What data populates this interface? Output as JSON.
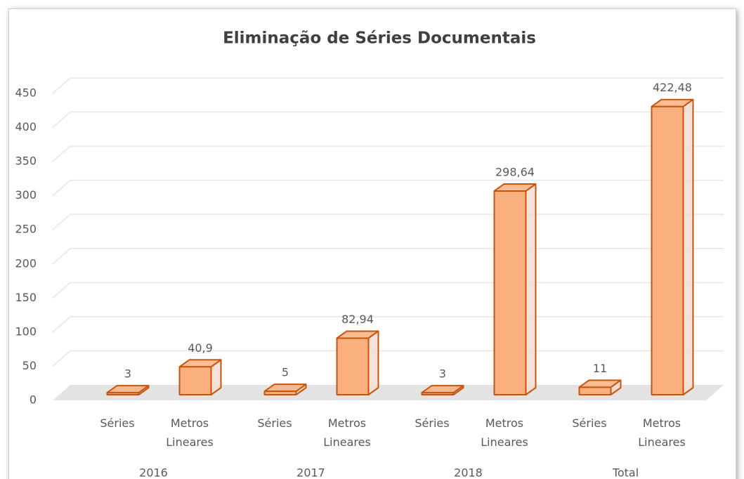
{
  "chart_data": {
    "type": "bar3d",
    "title": "Eliminação de Séries Documentais",
    "groups": [
      "2016",
      "2017",
      "2018",
      "Total"
    ],
    "categories": [
      "Séries",
      "Metros Lineares",
      "Séries",
      "Metros Lineares",
      "Séries",
      "Metros Lineares",
      "Séries",
      "Metros Lineares"
    ],
    "values": [
      3,
      40.9,
      5,
      82.94,
      3,
      298.64,
      11,
      422.48
    ],
    "value_labels": [
      "3",
      "40,9",
      "5",
      "82,94",
      "3",
      "298,64",
      "11",
      "422,48"
    ],
    "color": "#f9b07f",
    "edge_color": "#c8550f",
    "ylim": [
      0,
      450
    ],
    "yticks": [
      0,
      50,
      100,
      150,
      200,
      250,
      300,
      350,
      400,
      450
    ],
    "grid": true
  }
}
